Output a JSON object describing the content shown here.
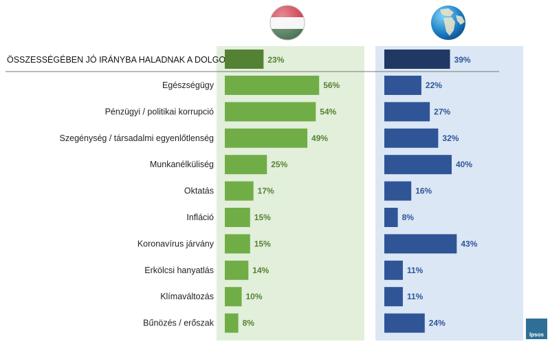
{
  "colors": {
    "hu_panel": "#e2efda",
    "global_panel": "#dbe7f5",
    "hu_bar": "#70ad47",
    "hu_summary_bar": "#548235",
    "global_bar": "#2f5597",
    "global_summary_bar": "#1f3864",
    "hu_text": "#548235",
    "global_text": "#2f5597"
  },
  "icons": {
    "hungary": "hungary-flag-icon",
    "world": "globe-icon",
    "brand": "ipsos-logo"
  },
  "logo_text": "Ipsos",
  "chart_data": {
    "type": "bar",
    "orientation": "horizontal",
    "summary": {
      "label": "ÖSSZESSÉGÉBEN JÓ IRÁNYBA HALADNAK A DOLGOK",
      "values": [
        23,
        39
      ],
      "labels": [
        "23%",
        "39%"
      ]
    },
    "categories": [
      "Egészségügy",
      "Pénzügyi / politikai korrupció",
      "Szegénység / társadalmi egyenlőtlenség",
      "Munkanélküliség",
      "Oktatás",
      "Infláció",
      "Koronavírus járvány",
      "Erkölcsi hanyatlás",
      "Klímaváltozás",
      "Bűnözés / erőszak"
    ],
    "series": [
      {
        "icon": "hungary-flag-icon",
        "values": [
          56,
          54,
          49,
          25,
          17,
          15,
          15,
          14,
          10,
          8
        ],
        "labels": [
          "56%",
          "54%",
          "49%",
          "25%",
          "17%",
          "15%",
          "15%",
          "14%",
          "10%",
          "8%"
        ]
      },
      {
        "icon": "globe-icon",
        "values": [
          22,
          27,
          32,
          40,
          16,
          8,
          43,
          11,
          11,
          24
        ],
        "labels": [
          "22%",
          "27%",
          "32%",
          "40%",
          "16%",
          "8%",
          "43%",
          "11%",
          "11%",
          "24%"
        ]
      }
    ],
    "value_unit": "%",
    "grid": false
  }
}
